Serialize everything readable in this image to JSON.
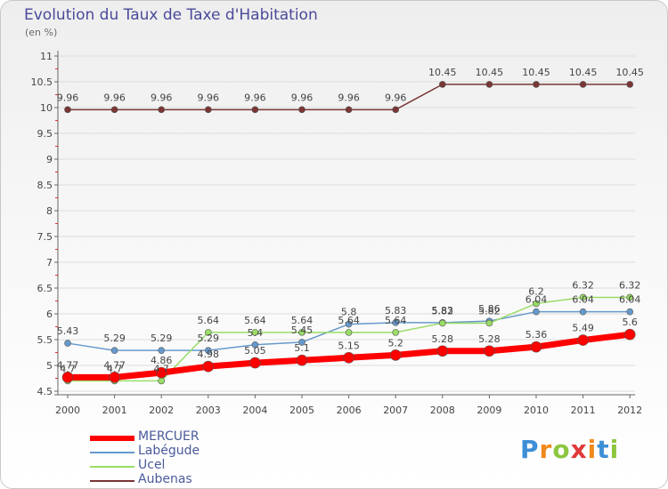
{
  "chart_data": {
    "type": "line",
    "title": "Evolution du Taux de Taxe d'Habitation",
    "subtitle": "(en %)",
    "xlabel": "",
    "ylabel": "(en %)",
    "ylim": [
      4.5,
      11
    ],
    "yticks": [
      "4.5",
      "5",
      "5.5",
      "6",
      "6.5",
      "7",
      "7.5",
      "8",
      "8.5",
      "9",
      "9.5",
      "10",
      "10.5",
      "11"
    ],
    "categories": [
      "2000",
      "2001",
      "2002",
      "2003",
      "2004",
      "2005",
      "2006",
      "2007",
      "2008",
      "2009",
      "2010",
      "2011",
      "2012"
    ],
    "series": [
      {
        "name": "MERCUER",
        "color": "#ff0000",
        "values": [
          4.77,
          4.77,
          4.86,
          4.98,
          5.05,
          5.1,
          5.15,
          5.2,
          5.28,
          5.28,
          5.36,
          5.49,
          5.6
        ],
        "labels": [
          "4.77",
          "4.77",
          "4.86",
          "4.98",
          "5.05",
          "5.1",
          "5.15",
          "5.2",
          "5.28",
          "5.28",
          "5.36",
          "5.49",
          "5.6"
        ]
      },
      {
        "name": "Labégude",
        "color": "#6699cc",
        "values": [
          5.43,
          5.29,
          5.29,
          5.29,
          5.4,
          5.45,
          5.8,
          5.83,
          5.83,
          5.86,
          6.04,
          6.04,
          6.04
        ],
        "labels": [
          "5.43",
          "5.29",
          "5.29",
          "5.29",
          "5.4",
          "5.45",
          "5.8",
          "5.83",
          "5.83",
          "5.86",
          "6.04",
          "6.04",
          "6.04"
        ]
      },
      {
        "name": "Ucel",
        "color": "#99dd66",
        "values": [
          4.7,
          4.7,
          4.7,
          5.64,
          5.64,
          5.64,
          5.64,
          5.64,
          5.82,
          5.82,
          6.2,
          6.32,
          6.32
        ],
        "labels": [
          "4.7",
          "4.7",
          "4.7",
          "5.64",
          "5.64",
          "5.64",
          "5.64",
          "5.64",
          "5.82",
          "5.82",
          "6.2",
          "6.32",
          "6.32"
        ]
      },
      {
        "name": "Aubenas",
        "color": "#7a3535",
        "values": [
          9.96,
          9.96,
          9.96,
          9.96,
          9.96,
          9.96,
          9.96,
          9.96,
          10.45,
          10.45,
          10.45,
          10.45,
          10.45
        ],
        "labels": [
          "9.96",
          "9.96",
          "9.96",
          "9.96",
          "9.96",
          "9.96",
          "9.96",
          "9.96",
          "10.45",
          "10.45",
          "10.45",
          "10.45",
          "10.45"
        ]
      }
    ]
  },
  "logo": {
    "letters": [
      "P",
      "r",
      "o",
      "x",
      "i",
      "t",
      "i"
    ],
    "colors": [
      "#3d8fd6",
      "#f08a1c",
      "#8cc63f",
      "#e03a3a",
      "#f08a1c",
      "#3d8fd6",
      "#8cc63f"
    ]
  }
}
